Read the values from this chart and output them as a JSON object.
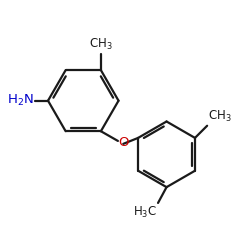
{
  "background_color": "#ffffff",
  "bond_color": "#1a1a1a",
  "nh2_color": "#0000cc",
  "o_color": "#cc0000",
  "text_color": "#1a1a1a",
  "line_width": 1.6,
  "figsize": [
    2.5,
    2.5
  ],
  "dpi": 100
}
